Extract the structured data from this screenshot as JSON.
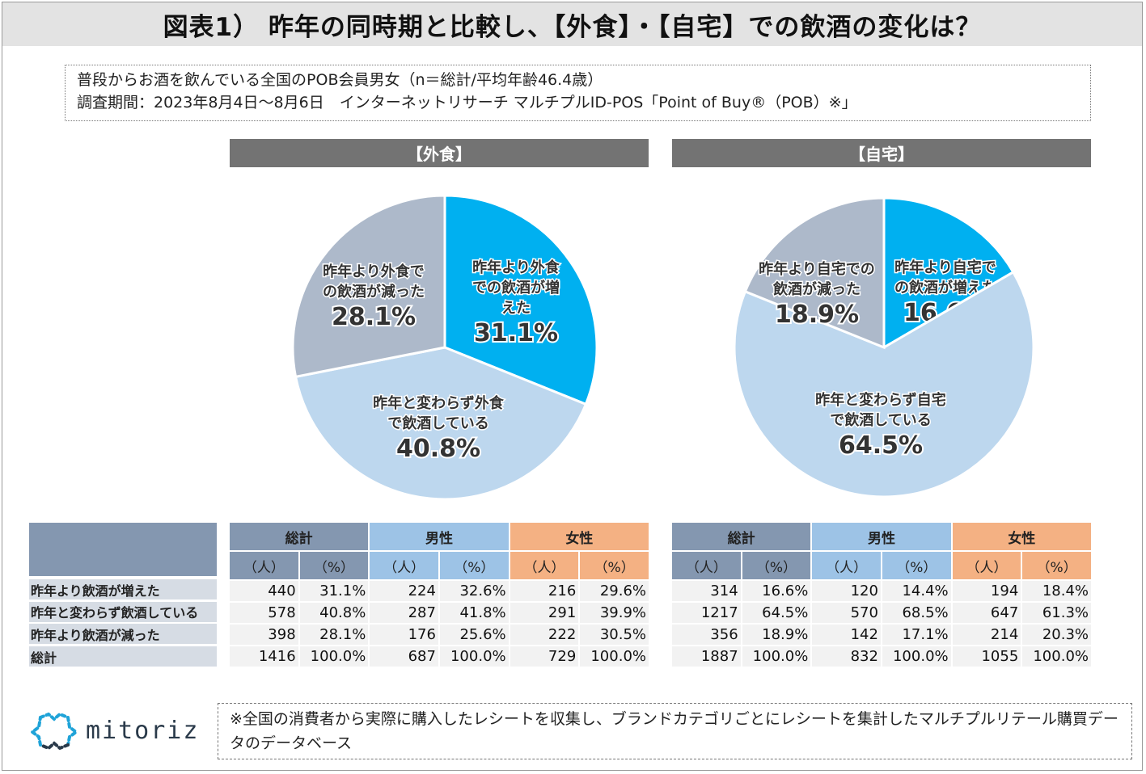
{
  "title": "図表1） 昨年の同時期と比較し、【外食】・【自宅】での飲酒の変化は？",
  "description": {
    "line1": "普段からお酒を飲んでいる全国のPOB会員男女（n＝総計/平均年齢46.4歳）",
    "line2": "調査期間：2023年8月4日～8月6日　インターネットリサーチ マルチプルID-POS「Point of Buy®（POB）※」"
  },
  "colors": {
    "increase": "#00b0f0",
    "same": "#bdd7ee",
    "decrease": "#adb9ca",
    "total_header": "#8497b0",
    "male_header": "#9dc3e6",
    "female_header": "#f4b183"
  },
  "chart_data": [
    {
      "type": "pie",
      "title": "【外食】",
      "slices": [
        {
          "label_lines": [
            "昨年より外食",
            "での飲酒が増",
            "えた"
          ],
          "value": 31.1,
          "value_label": "31.1%"
        },
        {
          "label_lines": [
            "昨年と変わらず外食",
            "で飲酒している"
          ],
          "value": 40.8,
          "value_label": "40.8%"
        },
        {
          "label_lines": [
            "昨年より外食で",
            "の飲酒が減った"
          ],
          "value": 28.1,
          "value_label": "28.1%"
        }
      ]
    },
    {
      "type": "pie",
      "title": "【自宅】",
      "slices": [
        {
          "label_lines": [
            "昨年より自宅で",
            "の飲酒が増えた"
          ],
          "value": 16.6,
          "value_label": "16.6%"
        },
        {
          "label_lines": [
            "昨年と変わらず自宅",
            "で飲酒している"
          ],
          "value": 64.5,
          "value_label": "64.5%"
        },
        {
          "label_lines": [
            "昨年より自宅での",
            "飲酒が減った"
          ],
          "value": 18.9,
          "value_label": "18.9%"
        }
      ]
    },
    {
      "type": "table",
      "row_labels": [
        "昨年より飲酒が増えた",
        "昨年と変わらず飲酒している",
        "昨年より飲酒が減った",
        "総計"
      ],
      "group_headers": [
        "総計",
        "男性",
        "女性"
      ],
      "unit_headers": [
        "（人）",
        "（%）"
      ],
      "tables": [
        {
          "name": "外食",
          "rows": [
            [
              "440",
              "31.1%",
              "224",
              "32.6%",
              "216",
              "29.6%"
            ],
            [
              "578",
              "40.8%",
              "287",
              "41.8%",
              "291",
              "39.9%"
            ],
            [
              "398",
              "28.1%",
              "176",
              "25.6%",
              "222",
              "30.5%"
            ],
            [
              "1416",
              "100.0%",
              "687",
              "100.0%",
              "729",
              "100.0%"
            ]
          ]
        },
        {
          "name": "自宅",
          "rows": [
            [
              "314",
              "16.6%",
              "120",
              "14.4%",
              "194",
              "18.4%"
            ],
            [
              "1217",
              "64.5%",
              "570",
              "68.5%",
              "647",
              "61.3%"
            ],
            [
              "356",
              "18.9%",
              "142",
              "17.1%",
              "214",
              "20.3%"
            ],
            [
              "1887",
              "100.0%",
              "832",
              "100.0%",
              "1055",
              "100.0%"
            ]
          ]
        }
      ]
    }
  ],
  "footer": {
    "logo_text": "mitoriz",
    "note": "※全国の消費者から実際に購入したレシートを収集し、ブランドカテゴリごとにレシートを集計したマルチプルリテール購買データのデータベース"
  }
}
